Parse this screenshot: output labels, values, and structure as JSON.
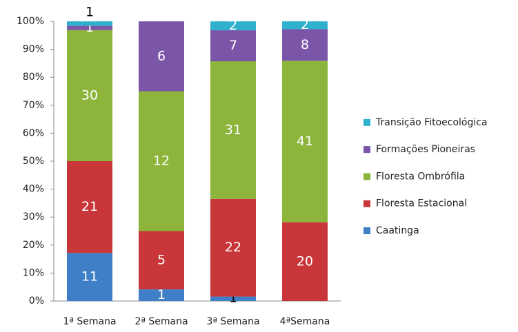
{
  "chart_data": {
    "type": "stacked_percent_bar",
    "categories": [
      "1ª Semana",
      "2ª Semana",
      "3ª Semana",
      "4ªSemana"
    ],
    "series": [
      {
        "name": "Caatinga",
        "color": "#3f7fc7",
        "values": [
          11,
          1,
          1,
          0
        ]
      },
      {
        "name": "Floresta Estacional",
        "color": "#c9363a",
        "values": [
          21,
          5,
          22,
          20
        ]
      },
      {
        "name": "Floresta Ombrófila",
        "color": "#8db53c",
        "values": [
          30,
          12,
          31,
          41
        ]
      },
      {
        "name": "Formações Pioneiras",
        "color": "#7b55a8",
        "values": [
          1,
          6,
          7,
          8
        ]
      },
      {
        "name": "Transição Fitoecológica",
        "color": "#2fb0cc",
        "values": [
          1,
          0,
          2,
          2
        ]
      }
    ],
    "ylim": [
      0,
      100
    ],
    "yticks": [
      {
        "value": 0,
        "label": "0%"
      },
      {
        "value": 10,
        "label": "10%"
      },
      {
        "value": 20,
        "label": "20%"
      },
      {
        "value": 30,
        "label": "30%"
      },
      {
        "value": 40,
        "label": "40%"
      },
      {
        "value": 50,
        "label": "50%"
      },
      {
        "value": 60,
        "label": "60%"
      },
      {
        "value": 70,
        "label": "70%"
      },
      {
        "value": 80,
        "label": "80%"
      },
      {
        "value": 90,
        "label": "90%"
      },
      {
        "value": 100,
        "label": "100%"
      }
    ],
    "legend": "right"
  }
}
